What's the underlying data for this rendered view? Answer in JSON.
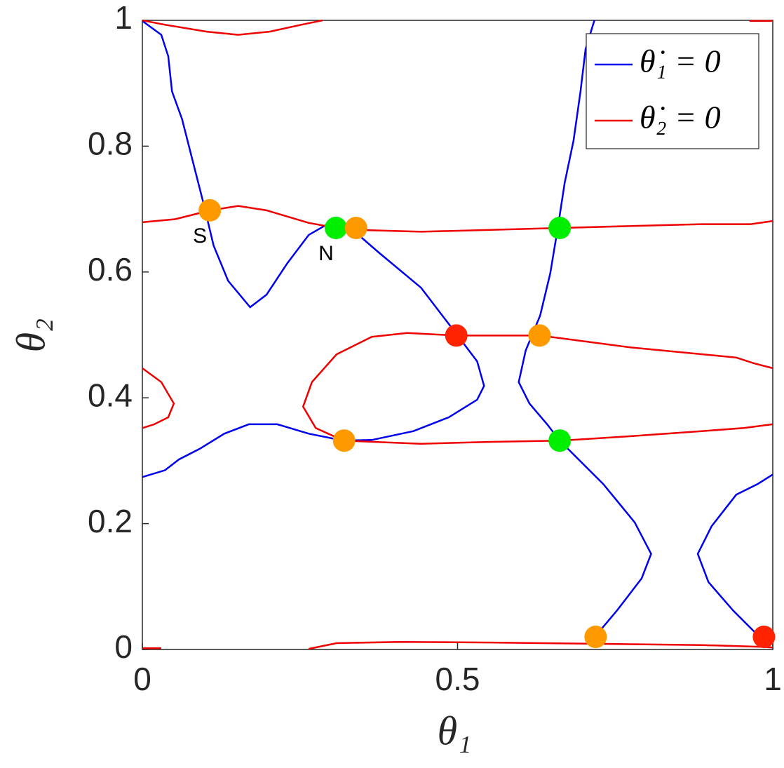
{
  "chart_data": {
    "type": "line",
    "xlabel": "θ₁",
    "ylabel": "θ₂",
    "xlim": [
      0,
      1
    ],
    "ylim": [
      0,
      1
    ],
    "xticks": [
      0,
      0.5,
      1
    ],
    "yticks": [
      0,
      0.2,
      0.4,
      0.6,
      0.8,
      1
    ],
    "legend": "northeast",
    "series": [
      {
        "name": "θ̇₁ = 0",
        "color": "#0000ee",
        "x": [
          0,
          0.03,
          0.041,
          0.047,
          0.063,
          0.08,
          0.097,
          0.113,
          0.136,
          0.171,
          0.197,
          0.23,
          0.264,
          0.297,
          0.33,
          0.375,
          0.442,
          0.497,
          0.531,
          0.542,
          0.531,
          0.486,
          0.43,
          0.364,
          0.319,
          0.264,
          0.214,
          0.169,
          0.13,
          0.091,
          0.058,
          0.036,
          0,
          null,
          0.717,
          0.703,
          0.695,
          0.684,
          0.67,
          0.659,
          0.647,
          0.631,
          0.608,
          0.597,
          0.614,
          0.642,
          0.662,
          0.731,
          0.781,
          0.807,
          0.792,
          0.753,
          0.72,
          null,
          1,
          0.976,
          0.942,
          0.903,
          0.881,
          0.898,
          0.937,
          0.976
        ],
        "y": [
          0.999,
          0.977,
          0.943,
          0.887,
          0.843,
          0.776,
          0.709,
          0.642,
          0.586,
          0.544,
          0.564,
          0.614,
          0.659,
          0.678,
          0.67,
          0.631,
          0.575,
          0.503,
          0.458,
          0.419,
          0.397,
          0.369,
          0.347,
          0.333,
          0.332,
          0.343,
          0.358,
          0.358,
          0.343,
          0.319,
          0.302,
          0.285,
          0.274,
          null,
          1,
          0.954,
          0.887,
          0.809,
          0.742,
          0.67,
          0.598,
          0.531,
          0.475,
          0.425,
          0.391,
          0.358,
          0.332,
          0.263,
          0.202,
          0.152,
          0.113,
          0.062,
          0.023,
          null,
          0.278,
          0.263,
          0.246,
          0.196,
          0.152,
          0.107,
          0.062,
          0.023
        ]
      },
      {
        "name": "θ̇₂ = 0",
        "color": "#ee0000",
        "x": [
          0,
          0.036,
          0.102,
          0.152,
          0.202,
          0.252,
          0.286,
          null,
          0.963,
          1,
          null,
          0,
          0.052,
          0.108,
          0.152,
          0.197,
          0.264,
          0.308,
          0.341,
          0.442,
          0.553,
          0.664,
          0.775,
          0.887,
          0.965,
          1,
          null,
          1,
          0.97,
          0.942,
          0.775,
          0.631,
          0.497,
          0.42,
          0.364,
          0.308,
          0.269,
          0.255,
          0.275,
          0.319,
          0.442,
          0.553,
          0.664,
          0.775,
          0.887,
          0.954,
          1,
          null,
          0,
          0.03,
          0.05,
          0.041,
          0.019,
          0,
          null,
          0.264,
          0.308,
          0.408,
          0.553,
          0.72,
          0.887,
          0.987,
          1,
          null,
          0,
          0.03
        ],
        "y": [
          1,
          0.993,
          0.982,
          0.977,
          0.982,
          0.993,
          1,
          null,
          0.999,
          0.999,
          null,
          0.679,
          0.684,
          0.698,
          0.705,
          0.698,
          0.678,
          0.67,
          0.667,
          0.664,
          0.667,
          0.67,
          0.673,
          0.676,
          0.676,
          0.681,
          null,
          0.447,
          0.455,
          0.464,
          0.48,
          0.499,
          0.499,
          0.503,
          0.497,
          0.469,
          0.425,
          0.386,
          0.352,
          0.332,
          0.327,
          0.33,
          0.332,
          0.339,
          0.347,
          0.352,
          0.358,
          null,
          0.447,
          0.425,
          0.391,
          0.369,
          0.358,
          0.352,
          null,
          0.001,
          0.01,
          0.012,
          0.011,
          0.009,
          0.007,
          0.004,
          0.003,
          null,
          0.002,
          0.002
        ]
      }
    ],
    "points": {
      "x": [
        0.107,
        0.307,
        0.339,
        0.662,
        0.498,
        0.63,
        0.32,
        0.662,
        0.719,
        0.986
      ],
      "y": [
        0.698,
        0.67,
        0.67,
        0.67,
        0.499,
        0.499,
        0.332,
        0.332,
        0.02,
        0.02
      ],
      "colors": [
        "#ff9900",
        "#00ee00",
        "#ff9900",
        "#00ee00",
        "#ff2200",
        "#ff9900",
        "#ff9900",
        "#00ee00",
        "#ff9900",
        "#ff2200"
      ]
    },
    "annotations": [
      "S",
      "N"
    ]
  }
}
